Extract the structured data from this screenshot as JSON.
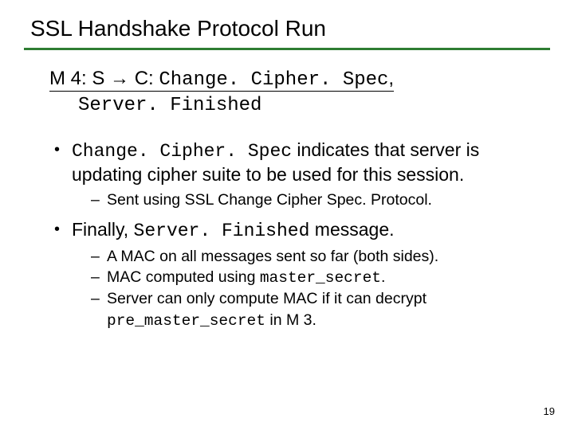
{
  "title": "SSL Handshake Protocol Run",
  "msg": {
    "prefix": "M 4: S ",
    "arrow": "→",
    "mid": " C: ",
    "code1": "Change. Cipher. Spec",
    "comma": ",",
    "code2": "Server. Finished"
  },
  "b1": {
    "code": "Change. Cipher. Spec",
    "tail": " indicates that server is updating cipher suite to be used for this session."
  },
  "b1s1": "Sent using SSL Change Cipher Spec. Protocol.",
  "b2": {
    "head": "Finally, ",
    "code": "Server. Finished",
    "tail": "  message."
  },
  "b2s1": "A MAC on all messages sent so far (both sides).",
  "b2s2": {
    "head": "MAC computed using ",
    "code": "master_secret",
    "tail": "."
  },
  "b2s3": {
    "head": "Server can only compute MAC if it can decrypt ",
    "code": "pre_master_secret",
    "tail": " in M 3."
  },
  "pagenum": "19",
  "colors": {
    "rule": "#2e7d32",
    "text": "#000000",
    "bg": "#ffffff"
  }
}
